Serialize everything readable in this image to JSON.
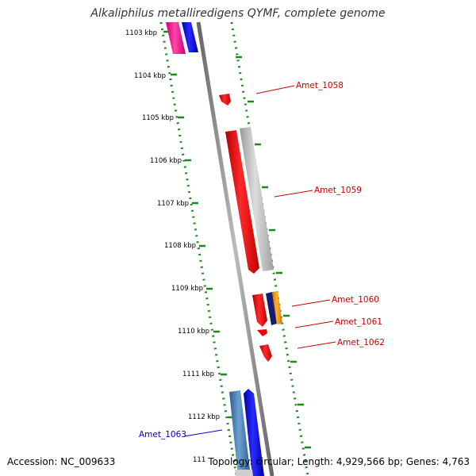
{
  "title": "Alkaliphilus metalliredigens QYMF, complete genome",
  "accession": "Accession: NC_009633",
  "summary": "Topology: circular; Length: 4,929,566 bp; Genes: 4,763",
  "ticks": [
    "1103 kbp",
    "1104 kbp",
    "1105 kbp",
    "1106 kbp",
    "1107 kbp",
    "1108 kbp",
    "1109 kbp",
    "1110 kbp",
    "1111 kbp",
    "1112 kbp",
    "111"
  ],
  "genes": [
    {
      "label": "Amet_1058",
      "color": "#cc0000"
    },
    {
      "label": "Amet_1059",
      "color": "#cc0000"
    },
    {
      "label": "Amet_1060",
      "color": "#cc0000"
    },
    {
      "label": "Amet_1061",
      "color": "#cc0000"
    },
    {
      "label": "Amet_1062",
      "color": "#cc0000"
    },
    {
      "label": "Amet_1063",
      "color": "#0000cc"
    }
  ],
  "colors": {
    "backbone": "#808080",
    "dotted": "#1a8a1a",
    "forward": "#ff0000",
    "reverse": "#0000ff",
    "magenta": "#ff1493",
    "grey": "#bbbbbb",
    "steel": "#4682b4",
    "navy": "#1a1a6e",
    "orange": "#ff9900"
  }
}
